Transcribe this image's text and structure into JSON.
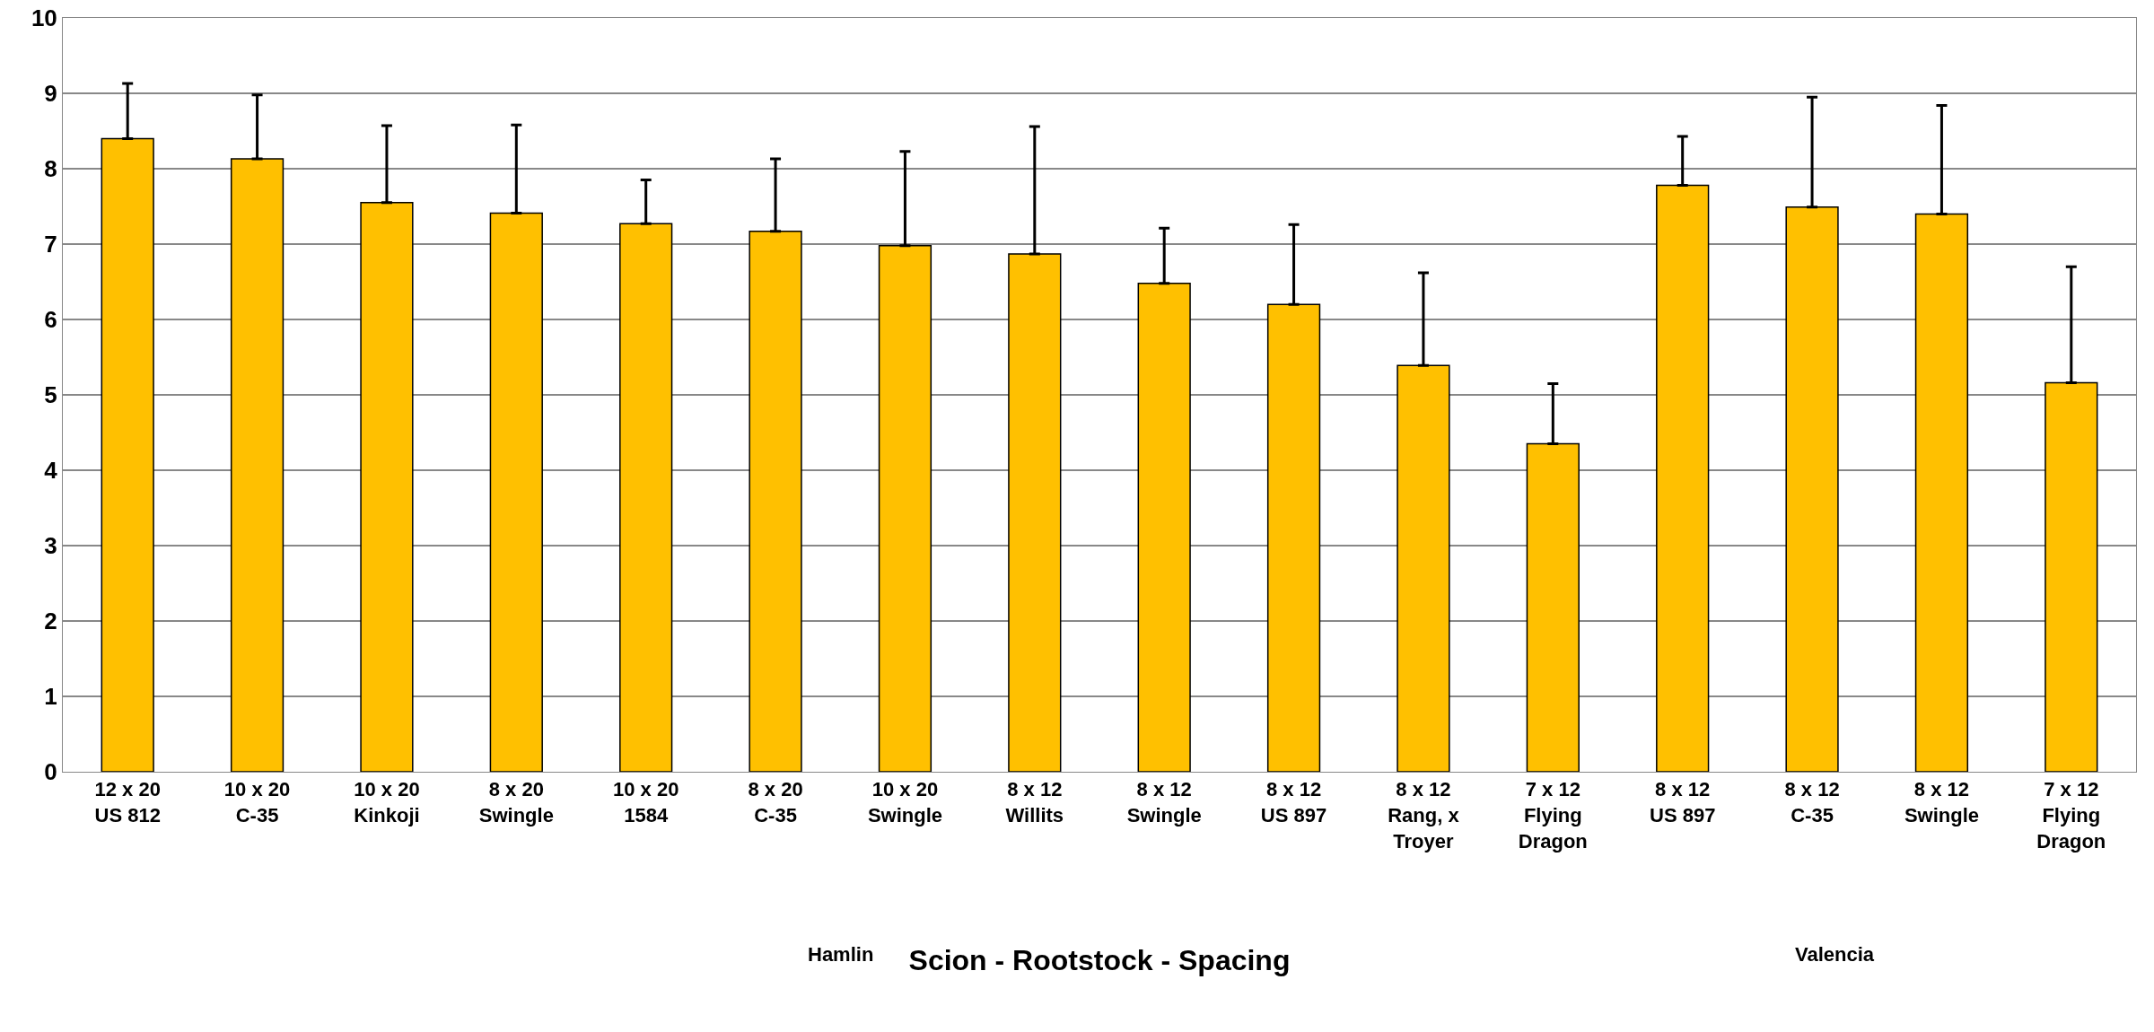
{
  "chart_data": {
    "type": "bar",
    "xlabel": "Scion - Rootstock - Spacing",
    "categories": [
      "12 x 20\nUS 812",
      "10 x 20\nC-35",
      "10 x 20\nKinkoji",
      "8 x 20\nSwingle",
      "10 x 20\n1584",
      "8 x 20\nC-35",
      "10 x 20\nSwingle",
      "8 x 12\nWillits",
      "8 x 12\nSwingle",
      "8 x 12\nUS 897",
      "8 x 12\nRang, x\nTroyer",
      "7 x 12\nFlying\nDragon",
      "8 x 12\nUS 897",
      "8 x 12\nC-35",
      "8 x 12\nSwingle",
      "7 x 12\nFlying\nDragon"
    ],
    "values": [
      8.4,
      8.13,
      7.55,
      7.41,
      7.27,
      7.17,
      6.98,
      6.87,
      6.48,
      6.2,
      5.39,
      4.35,
      7.78,
      7.49,
      7.4,
      5.16
    ],
    "errors": [
      [
        8.4,
        9.13
      ],
      [
        8.13,
        8.98
      ],
      [
        7.55,
        8.57
      ],
      [
        7.41,
        8.58
      ],
      [
        7.27,
        7.85
      ],
      [
        7.17,
        8.13
      ],
      [
        6.98,
        8.23
      ],
      [
        6.87,
        8.56
      ],
      [
        6.48,
        7.21
      ],
      [
        6.2,
        7.26
      ],
      [
        5.39,
        6.62
      ],
      [
        4.35,
        5.15
      ],
      [
        7.78,
        8.43
      ],
      [
        7.49,
        8.95
      ],
      [
        7.4,
        8.84
      ],
      [
        5.16,
        6.7
      ]
    ],
    "color": "#ffc000",
    "annotations": [
      "Hamlin",
      "Valencia"
    ],
    "ylim": [
      0,
      10
    ],
    "yticks": [
      0,
      1,
      2,
      3,
      4,
      5,
      6,
      7,
      8,
      9,
      10
    ],
    "grid": "y"
  }
}
